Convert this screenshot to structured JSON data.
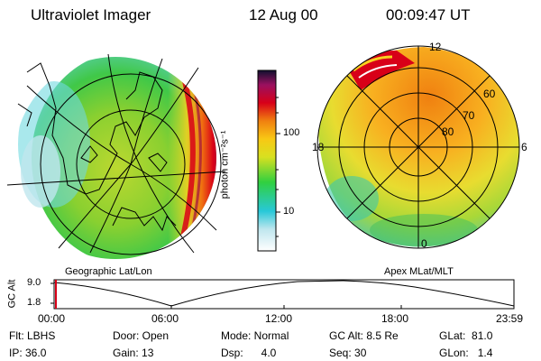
{
  "header": {
    "instrument": "Ultraviolet Imager",
    "date": "12 Aug 00",
    "time": "00:09:47 UT"
  },
  "colorbar": {
    "unit_label": "photon cm⁻²s⁻¹",
    "ticks": [
      "100",
      "10"
    ]
  },
  "left_panel": {
    "caption": "Geographic Lat/Lon"
  },
  "right_panel": {
    "caption": "Apex MLat/MLT",
    "lat_labels": [
      "60",
      "70",
      "80"
    ],
    "mlt_labels": {
      "top": "12",
      "left": "18",
      "right": "6",
      "bottom": "0"
    }
  },
  "altitude_strip": {
    "ylabel": "GC Alt",
    "yticks": [
      "9.0",
      "1.8"
    ],
    "xticks": [
      "00:00",
      "06:00",
      "12:00",
      "18:00",
      "23:59"
    ]
  },
  "status": {
    "row1": {
      "flt": "Flt: LBHS",
      "door": "Door: Open",
      "mode": "Mode: Normal",
      "gc_alt": "GC Alt: 8.5 Re",
      "glat": "GLat:  81.0"
    },
    "row2": {
      "ip": "IP: 36.0",
      "gain": "Gain: 13",
      "dsp": "Dsp:      4.0",
      "seq": "Seq: 30",
      "glon": "GLon:   1.4"
    }
  },
  "colors": {
    "low": "#dfeef3",
    "cyan": "#28c8d8",
    "green": "#3ad04a",
    "yellow": "#f0e020",
    "orange": "#f49016",
    "red": "#d80018",
    "magenta": "#b0206a",
    "dark": "#1a1030"
  }
}
